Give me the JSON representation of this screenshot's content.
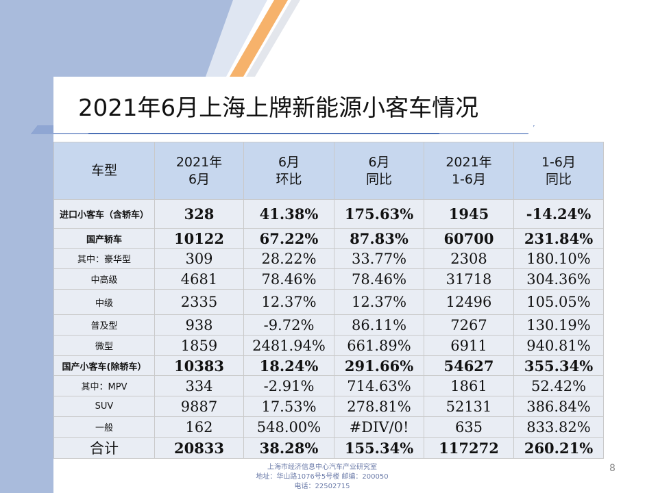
{
  "title": "2021年6月上海上牌新能源小客车情况",
  "colors": {
    "header_bg": "#c7d7ee",
    "cell_bg": "#e9edf4",
    "band": "#a9bbdc",
    "accent_orange": "#f6b26b",
    "accent_blue": "#4a6fb5"
  },
  "table": {
    "headers": [
      [
        "车型"
      ],
      [
        "2021年",
        "6月"
      ],
      [
        "6月",
        "环比"
      ],
      [
        "6月",
        "同比"
      ],
      [
        "2021年",
        "1-6月"
      ],
      [
        "1-6月",
        "同比"
      ]
    ],
    "rows": [
      [
        "进口小客车（含轿车）",
        "328",
        "41.38%",
        "175.63%",
        "1945",
        "-14.24%"
      ],
      [
        "国产轿车",
        "10122",
        "67.22%",
        "87.83%",
        "60700",
        "231.84%"
      ],
      [
        "其中：豪华型",
        "309",
        "28.22%",
        "33.77%",
        "2308",
        "180.10%"
      ],
      [
        "中高级",
        "4681",
        "78.46%",
        "78.46%",
        "31718",
        "304.36%"
      ],
      [
        "中级",
        "2335",
        "12.37%",
        "12.37%",
        "12496",
        "105.05%"
      ],
      [
        "普及型",
        "938",
        "-9.72%",
        "86.11%",
        "7267",
        "130.19%"
      ],
      [
        "微型",
        "1859",
        "2481.94%",
        "661.89%",
        "6911",
        "940.81%"
      ],
      [
        "国产小客车(除轿车）",
        "10383",
        "18.24%",
        "291.66%",
        "54627",
        "355.34%"
      ],
      [
        "其中：MPV",
        "334",
        "-2.91%",
        "714.63%",
        "1861",
        "52.42%"
      ],
      [
        "SUV",
        "9887",
        "17.53%",
        "278.81%",
        "52131",
        "386.84%"
      ],
      [
        "一般",
        "162",
        "548.00%",
        "#DIV/0!",
        "635",
        "833.82%"
      ],
      [
        "合计",
        "20833",
        "38.28%",
        "155.34%",
        "117272",
        "260.21%"
      ]
    ]
  },
  "page_number": "8",
  "footer": {
    "line1": "上海市经济信息中心汽车产业研究室",
    "line2": "地址：华山路1076号5号楼    邮编：200050",
    "line3": "电话：22502715"
  }
}
